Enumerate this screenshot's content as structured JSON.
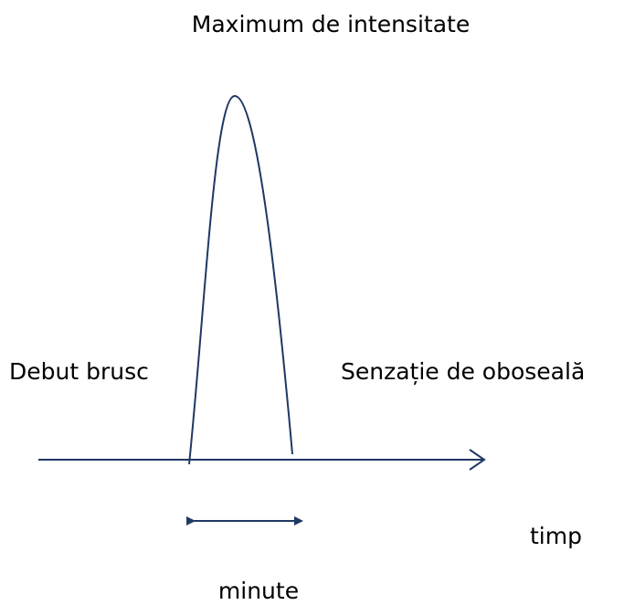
{
  "title": "Maximum de intensitate",
  "labels": {
    "onset": "Debut brusc",
    "end": "Senzație de oboseală",
    "axis": "timp",
    "duration": "minute"
  }
}
